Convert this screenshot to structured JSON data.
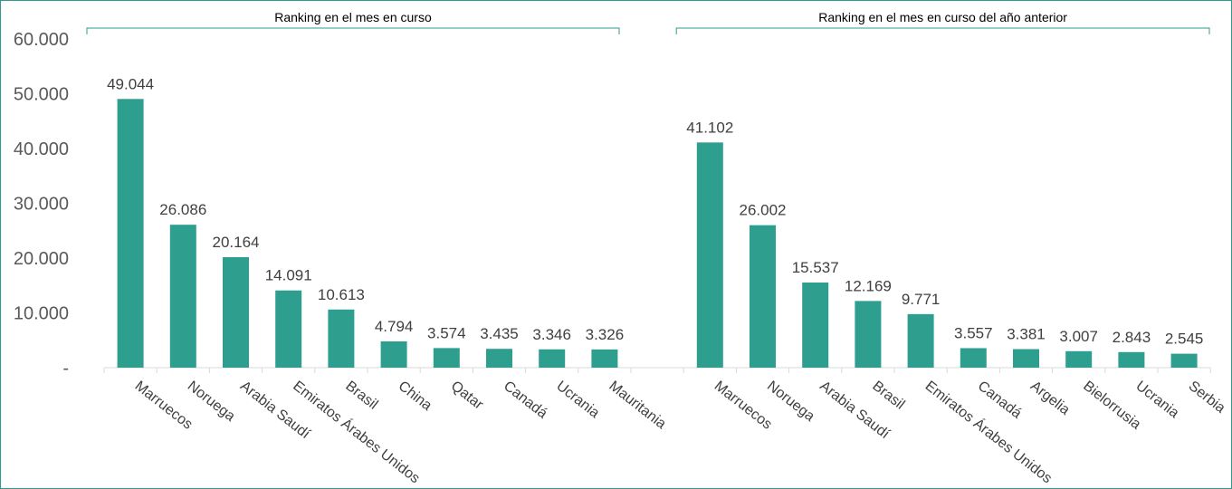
{
  "chart_data": {
    "type": "bar",
    "ylim": [
      0,
      60000
    ],
    "yticks": [
      "-",
      "10.000",
      "20.000",
      "30.000",
      "40.000",
      "50.000",
      "60.000"
    ],
    "grid": false,
    "bar_color": "#2e9e8f",
    "bracket_color": "#2e9c8c",
    "groups": [
      {
        "title": "Ranking en el mes en curso",
        "categories": [
          "Marruecos",
          "Noruega",
          "Arabia Saudí",
          "Emiratos Árabes Unidos",
          "Brasil",
          "China",
          "Qatar",
          "Canadá",
          "Ucrania",
          "Mauritania"
        ],
        "values": [
          49044,
          26086,
          20164,
          14091,
          10613,
          4794,
          3574,
          3435,
          3346,
          3326
        ],
        "value_labels": [
          "49.044",
          "26.086",
          "20.164",
          "14.091",
          "10.613",
          "4.794",
          "3.574",
          "3.435",
          "3.346",
          "3.326"
        ]
      },
      {
        "title": "Ranking en el mes en curso del año anterior",
        "categories": [
          "Marruecos",
          "Noruega",
          "Arabia Saudí",
          "Brasil",
          "Emiratos Árabes Unidos",
          "Canadá",
          "Argelia",
          "Bielorrusia",
          "Ucrania",
          "Serbia"
        ],
        "values": [
          41102,
          26002,
          15537,
          12169,
          9771,
          3557,
          3381,
          3007,
          2843,
          2545
        ],
        "value_labels": [
          "41.102",
          "26.002",
          "15.537",
          "12.169",
          "9.771",
          "3.557",
          "3.381",
          "3.007",
          "2.843",
          "2.545"
        ]
      }
    ]
  }
}
